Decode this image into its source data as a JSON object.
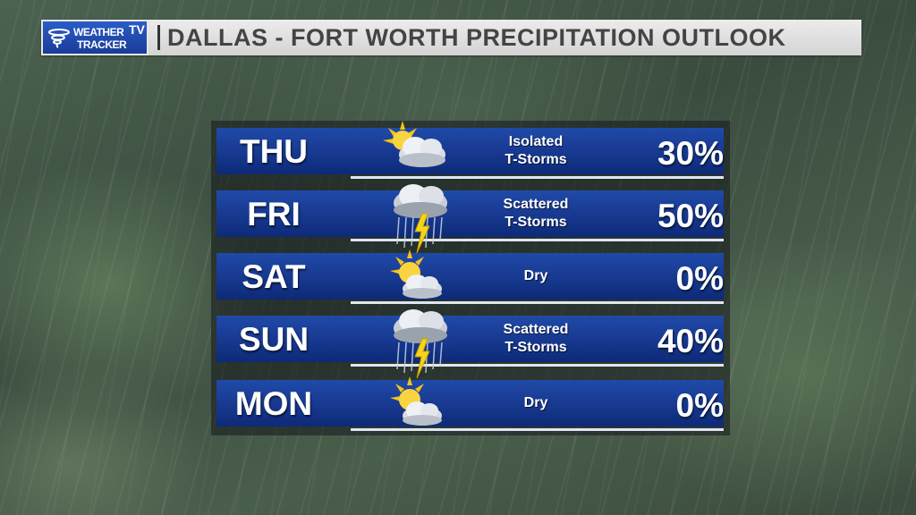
{
  "header": {
    "logo_line1": "WEATHER",
    "logo_line2": "TRACKER",
    "logo_tv": "TV",
    "title": "DALLAS - FORT WORTH PRECIPITATION OUTLOOK"
  },
  "forecast": [
    {
      "day": "THU",
      "condition_line1": "Isolated",
      "condition_line2": "T-Storms",
      "chance": "30%",
      "icon": "partly-sunny-icon"
    },
    {
      "day": "FRI",
      "condition_line1": "Scattered",
      "condition_line2": "T-Storms",
      "chance": "50%",
      "icon": "thunderstorm-icon"
    },
    {
      "day": "SAT",
      "condition_line1": "Dry",
      "condition_line2": "",
      "chance": "0%",
      "icon": "sun-cloud-icon"
    },
    {
      "day": "SUN",
      "condition_line1": "Scattered",
      "condition_line2": "T-Storms",
      "chance": "40%",
      "icon": "thunderstorm-icon"
    },
    {
      "day": "MON",
      "condition_line1": "Dry",
      "condition_line2": "",
      "chance": "0%",
      "icon": "sun-cloud-icon"
    }
  ],
  "colors": {
    "bar_top": "#1f4aa8",
    "bar_bottom": "#0d2a78",
    "header_bg": "#e0e0e0",
    "logo_bg": "#2a5cc8"
  }
}
